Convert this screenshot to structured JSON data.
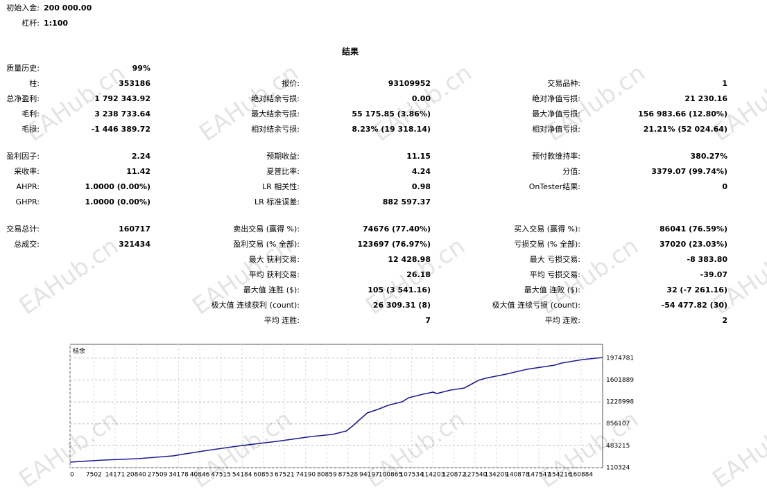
{
  "header": {
    "rows": [
      {
        "label": "初始入金:",
        "value": "200 000.00"
      },
      {
        "label": "杠杆:",
        "value": "1:100"
      }
    ]
  },
  "title": "结果",
  "sections": [
    {
      "rows": [
        [
          {
            "label": "质量历史:",
            "value": "99%"
          },
          null,
          null
        ],
        [
          {
            "label": "柱:",
            "value": "353186"
          },
          {
            "label": "报价:",
            "value": "93109952"
          },
          {
            "label": "交易品种:",
            "value": "1"
          }
        ],
        [
          {
            "label": "总净盈利:",
            "value": "1 792 343.92"
          },
          {
            "label": "绝对结余亏损:",
            "value": "0.00"
          },
          {
            "label": "绝对净值亏损:",
            "value": "21 230.16"
          }
        ],
        [
          {
            "label": "毛利:",
            "value": "3 238 733.64"
          },
          {
            "label": "最大结余亏损:",
            "value": "55 175.85 (3.86%)"
          },
          {
            "label": "最大净值亏损:",
            "value": "156 983.66 (12.80%)"
          }
        ],
        [
          {
            "label": "毛损:",
            "value": "-1 446 389.72"
          },
          {
            "label": "相对结余亏损:",
            "value": "8.23% (19 318.14)"
          },
          {
            "label": "相对净值亏损:",
            "value": "21.21% (52 024.64)"
          }
        ]
      ]
    },
    {
      "rows": [
        [
          {
            "label": "盈利因子:",
            "value": "2.24"
          },
          {
            "label": "预期收益:",
            "value": "11.15"
          },
          {
            "label": "预付款维持率:",
            "value": "380.27%"
          }
        ],
        [
          {
            "label": "采收率:",
            "value": "11.42"
          },
          {
            "label": "夏普比率:",
            "value": "4.24"
          },
          {
            "label": "分值:",
            "value": "3379.07 (99.74%)"
          }
        ],
        [
          {
            "label": "AHPR:",
            "value": "1.0000 (0.00%)"
          },
          {
            "label": "LR 相关性:",
            "value": "0.98"
          },
          {
            "label": "OnTester结果:",
            "value": "0"
          }
        ],
        [
          {
            "label": "GHPR:",
            "value": "1.0000 (0.00%)"
          },
          {
            "label": "LR 标准误差:",
            "value": "882 597.37"
          },
          null
        ]
      ]
    },
    {
      "rows": [
        [
          {
            "label": "交易总计:",
            "value": "160717"
          },
          {
            "label": "卖出交易 (赢得 %):",
            "value": "74676 (77.40%)"
          },
          {
            "label": "买入交易 (赢得 %):",
            "value": "86041 (76.59%)"
          }
        ],
        [
          {
            "label": "总成交:",
            "value": "321434"
          },
          {
            "label": "盈利交易 (% 全部):",
            "value": "123697 (76.97%)"
          },
          {
            "label": "亏损交易 (% 全部):",
            "value": "37020 (23.03%)"
          }
        ],
        [
          null,
          {
            "label": "最大 获利交易:",
            "value": "12 428.98"
          },
          {
            "label": "最大 亏损交易:",
            "value": "-8 383.80"
          }
        ],
        [
          null,
          {
            "label": "平均 获利交易:",
            "value": "26.18"
          },
          {
            "label": "平均 亏损交易:",
            "value": "-39.07"
          }
        ],
        [
          null,
          {
            "label": "最大值 连胜 ($):",
            "value": "105 (3 541.16)"
          },
          {
            "label": "最大值 连败 ($):",
            "value": "32 (-7 261.16)"
          }
        ],
        [
          null,
          {
            "label": "极大值 连续获利 (count):",
            "value": "26 309.31 (8)"
          },
          {
            "label": "极大值 连续亏损 (count):",
            "value": "-54 477.82 (30)"
          }
        ],
        [
          null,
          {
            "label": "平均 连胜:",
            "value": "7"
          },
          {
            "label": "平均 连败:",
            "value": "2"
          }
        ]
      ]
    }
  ],
  "watermark": "EAHub.cn",
  "chart_data": {
    "type": "line",
    "title": "结余",
    "x": [
      0,
      10492,
      21422,
      32351,
      43281,
      54211,
      65140,
      76070,
      82628,
      87000,
      89186,
      91372,
      93557,
      96836,
      100115,
      104487,
      106673,
      111045,
      114324,
      115417,
      119789,
      124161,
      128532,
      130718,
      137276,
      143834,
      152577,
      154763,
      161321,
      167660
    ],
    "series": [
      {
        "color": "#1c1c8f",
        "values": [
          204600,
          240000,
          263500,
          310700,
          404900,
          487400,
          558100,
          640600,
          676000,
          734900,
          829100,
          935200,
          1041300,
          1100200,
          1170900,
          1229800,
          1300500,
          1359400,
          1394800,
          1371200,
          1430100,
          1465500,
          1595100,
          1630500,
          1701200,
          1783700,
          1854400,
          1889700,
          1948600,
          1984000
        ]
      }
    ],
    "xlim": [
      0,
      167660
    ],
    "ylim": [
      110324,
      2207838
    ],
    "xticks": [
      0,
      7502,
      14171,
      20840,
      27509,
      34178,
      40846,
      47515,
      54184,
      60853,
      67521,
      74190,
      80859,
      87528,
      94197,
      100865,
      107534,
      114203,
      120872,
      127540,
      134209,
      140878,
      147547,
      154216,
      160884
    ],
    "yticks": [
      110324,
      483215,
      856107,
      1228998,
      1601889,
      1974781
    ],
    "grid": true
  }
}
